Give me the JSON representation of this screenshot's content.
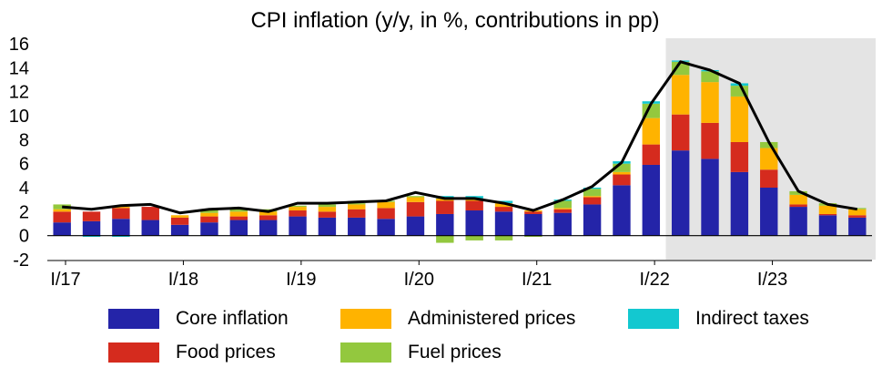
{
  "chart_data": {
    "type": "bar",
    "stacked": true,
    "title": "CPI inflation  (y/y, in %, contributions in pp)",
    "xlabel": "",
    "ylabel": "",
    "ylim": [
      -2,
      16
    ],
    "yticks": [
      "16",
      "14",
      "12",
      "10",
      "8",
      "6",
      "4",
      "2",
      "0",
      "-2"
    ],
    "ytick_values": [
      16,
      14,
      12,
      10,
      8,
      6,
      4,
      2,
      0,
      -2
    ],
    "xtick_labels": [
      "I/17",
      "I/18",
      "I/19",
      "I/20",
      "I/21",
      "I/22",
      "I/23"
    ],
    "xtick_quarter_index": [
      0,
      4,
      8,
      12,
      16,
      20,
      24
    ],
    "categories": [
      "I/17",
      "II/17",
      "III/17",
      "IV/17",
      "I/18",
      "II/18",
      "III/18",
      "IV/18",
      "I/19",
      "II/19",
      "III/19",
      "IV/19",
      "I/20",
      "II/20",
      "III/20",
      "IV/20",
      "I/21",
      "II/21",
      "III/21",
      "IV/21",
      "I/22",
      "II/22",
      "III/22",
      "IV/22",
      "I/23",
      "II/23",
      "III/23",
      "IV/23"
    ],
    "shaded_region": {
      "from_index": 21,
      "to_index": 27,
      "note": "projection period"
    },
    "series": [
      {
        "name": "Core inflation",
        "color": "#2424a8",
        "values": [
          1.1,
          1.2,
          1.4,
          1.3,
          0.9,
          1.1,
          1.3,
          1.3,
          1.6,
          1.5,
          1.5,
          1.4,
          1.6,
          1.8,
          2.1,
          2.0,
          1.8,
          1.9,
          2.6,
          4.2,
          5.9,
          7.1,
          6.4,
          5.3,
          4.0,
          2.4,
          1.7,
          1.5
        ]
      },
      {
        "name": "Food prices",
        "color": "#d52b1e",
        "values": [
          0.9,
          0.8,
          0.9,
          1.1,
          0.6,
          0.5,
          0.3,
          0.4,
          0.5,
          0.5,
          0.7,
          0.9,
          1.2,
          1.1,
          0.8,
          0.4,
          0.2,
          0.3,
          0.6,
          0.9,
          1.7,
          3.0,
          3.0,
          2.5,
          1.5,
          0.2,
          0.1,
          0.2
        ]
      },
      {
        "name": "Administered prices",
        "color": "#ffb300",
        "values": [
          0.2,
          0.0,
          0.1,
          0.0,
          0.2,
          0.3,
          0.4,
          0.3,
          0.3,
          0.4,
          0.4,
          0.5,
          0.4,
          0.2,
          0.2,
          0.3,
          0.1,
          0.1,
          0.1,
          0.2,
          2.2,
          3.3,
          3.4,
          3.8,
          1.8,
          0.8,
          0.7,
          0.5
        ]
      },
      {
        "name": "Fuel prices",
        "color": "#93c83e",
        "values": [
          0.4,
          0.0,
          0.0,
          0.0,
          0.0,
          0.3,
          0.3,
          0.2,
          0.1,
          0.2,
          0.1,
          0.1,
          0.1,
          -0.6,
          -0.4,
          -0.4,
          -0.1,
          0.6,
          0.6,
          0.7,
          1.2,
          1.1,
          0.9,
          0.9,
          0.5,
          0.3,
          0.2,
          0.1
        ]
      },
      {
        "name": "Indirect taxes",
        "color": "#13c8d0",
        "values": [
          0.0,
          -0.1,
          -0.1,
          0.0,
          0.0,
          0.0,
          0.0,
          0.0,
          0.0,
          0.0,
          0.0,
          0.0,
          0.0,
          0.2,
          0.2,
          0.2,
          0.0,
          0.1,
          0.1,
          0.2,
          0.2,
          0.1,
          0.1,
          0.2,
          0.0,
          0.0,
          0.0,
          0.0
        ]
      }
    ],
    "line": {
      "name": "CPI inflation",
      "color": "#000000",
      "values": [
        2.4,
        2.2,
        2.5,
        2.6,
        1.9,
        2.2,
        2.3,
        2.0,
        2.7,
        2.7,
        2.8,
        2.9,
        3.6,
        3.1,
        3.1,
        2.7,
        2.1,
        3.0,
        4.1,
        6.1,
        11.0,
        14.5,
        13.8,
        12.7,
        7.8,
        3.7,
        2.6,
        2.2
      ]
    },
    "legend": {
      "placement": "bottom",
      "entries": [
        {
          "label": "Core inflation",
          "color": "#2424a8"
        },
        {
          "label": "Administered prices",
          "color": "#ffb300"
        },
        {
          "label": "Indirect taxes",
          "color": "#13c8d0"
        },
        {
          "label": "Food prices",
          "color": "#d52b1e"
        },
        {
          "label": "Fuel prices",
          "color": "#93c83e"
        }
      ]
    }
  }
}
